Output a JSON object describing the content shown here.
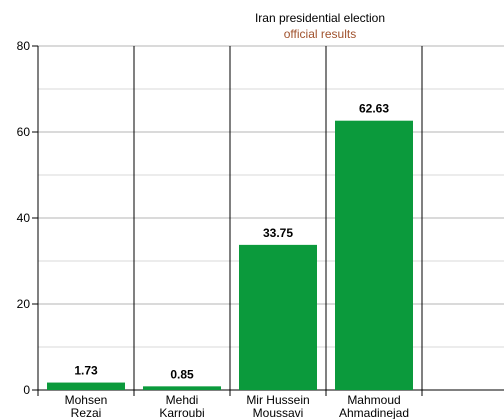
{
  "chart_data": {
    "type": "bar",
    "title": "Iran presidential election",
    "subtitle": "official results",
    "categories": [
      [
        "Mohsen",
        "Rezai"
      ],
      [
        "Mehdi",
        "Karroubi"
      ],
      [
        "Mir Hussein",
        "Moussavi"
      ],
      [
        "Mahmoud",
        "Ahmadinejad"
      ]
    ],
    "values": [
      1.73,
      0.85,
      33.75,
      62.63
    ],
    "value_labels": [
      "1.73",
      "0.85",
      "33.75",
      "62.63"
    ],
    "ylim": [
      0,
      80
    ],
    "yticks": [
      0,
      20,
      40,
      60,
      80
    ],
    "grid": true,
    "bar_color": "#0b9a3c",
    "title_color": "#000000",
    "subtitle_color": "#a0522d"
  }
}
